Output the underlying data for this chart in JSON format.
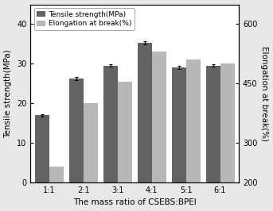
{
  "categories": [
    "1:1",
    "2:1",
    "3:1",
    "4:1",
    "5:1",
    "6:1"
  ],
  "tensile_strength": [
    17.0,
    26.2,
    29.5,
    35.3,
    29.0,
    29.5
  ],
  "elongation_at_break": [
    240,
    400,
    455,
    530,
    510,
    500
  ],
  "tensile_errors": [
    0.3,
    0.4,
    0.3,
    0.4,
    0.4,
    0.3
  ],
  "dark_bar_color": "#636363",
  "light_bar_color": "#b8b8b8",
  "xlabel": "The mass ratio of CSEBS:BPEI",
  "ylabel_left": "Tensile strength(MPa)",
  "ylabel_right": "Elongation at break(%)",
  "legend_tensile": "Tensile strength(MPa)",
  "legend_elongation": "Elongation at break(%)",
  "ylim_left": [
    0,
    45
  ],
  "ylim_right": [
    200,
    650
  ],
  "yticks_left": [
    0,
    10,
    20,
    30,
    40
  ],
  "yticks_right": [
    200,
    300,
    450,
    600
  ],
  "plot_bg_color": "#ffffff",
  "fig_bg_color": "#e8e8e8",
  "bar_width": 0.42,
  "figsize": [
    3.43,
    2.66
  ],
  "dpi": 100,
  "xlabel_fontsize": 7.5,
  "ylabel_fontsize": 7.5,
  "tick_fontsize": 7,
  "legend_fontsize": 6.5
}
